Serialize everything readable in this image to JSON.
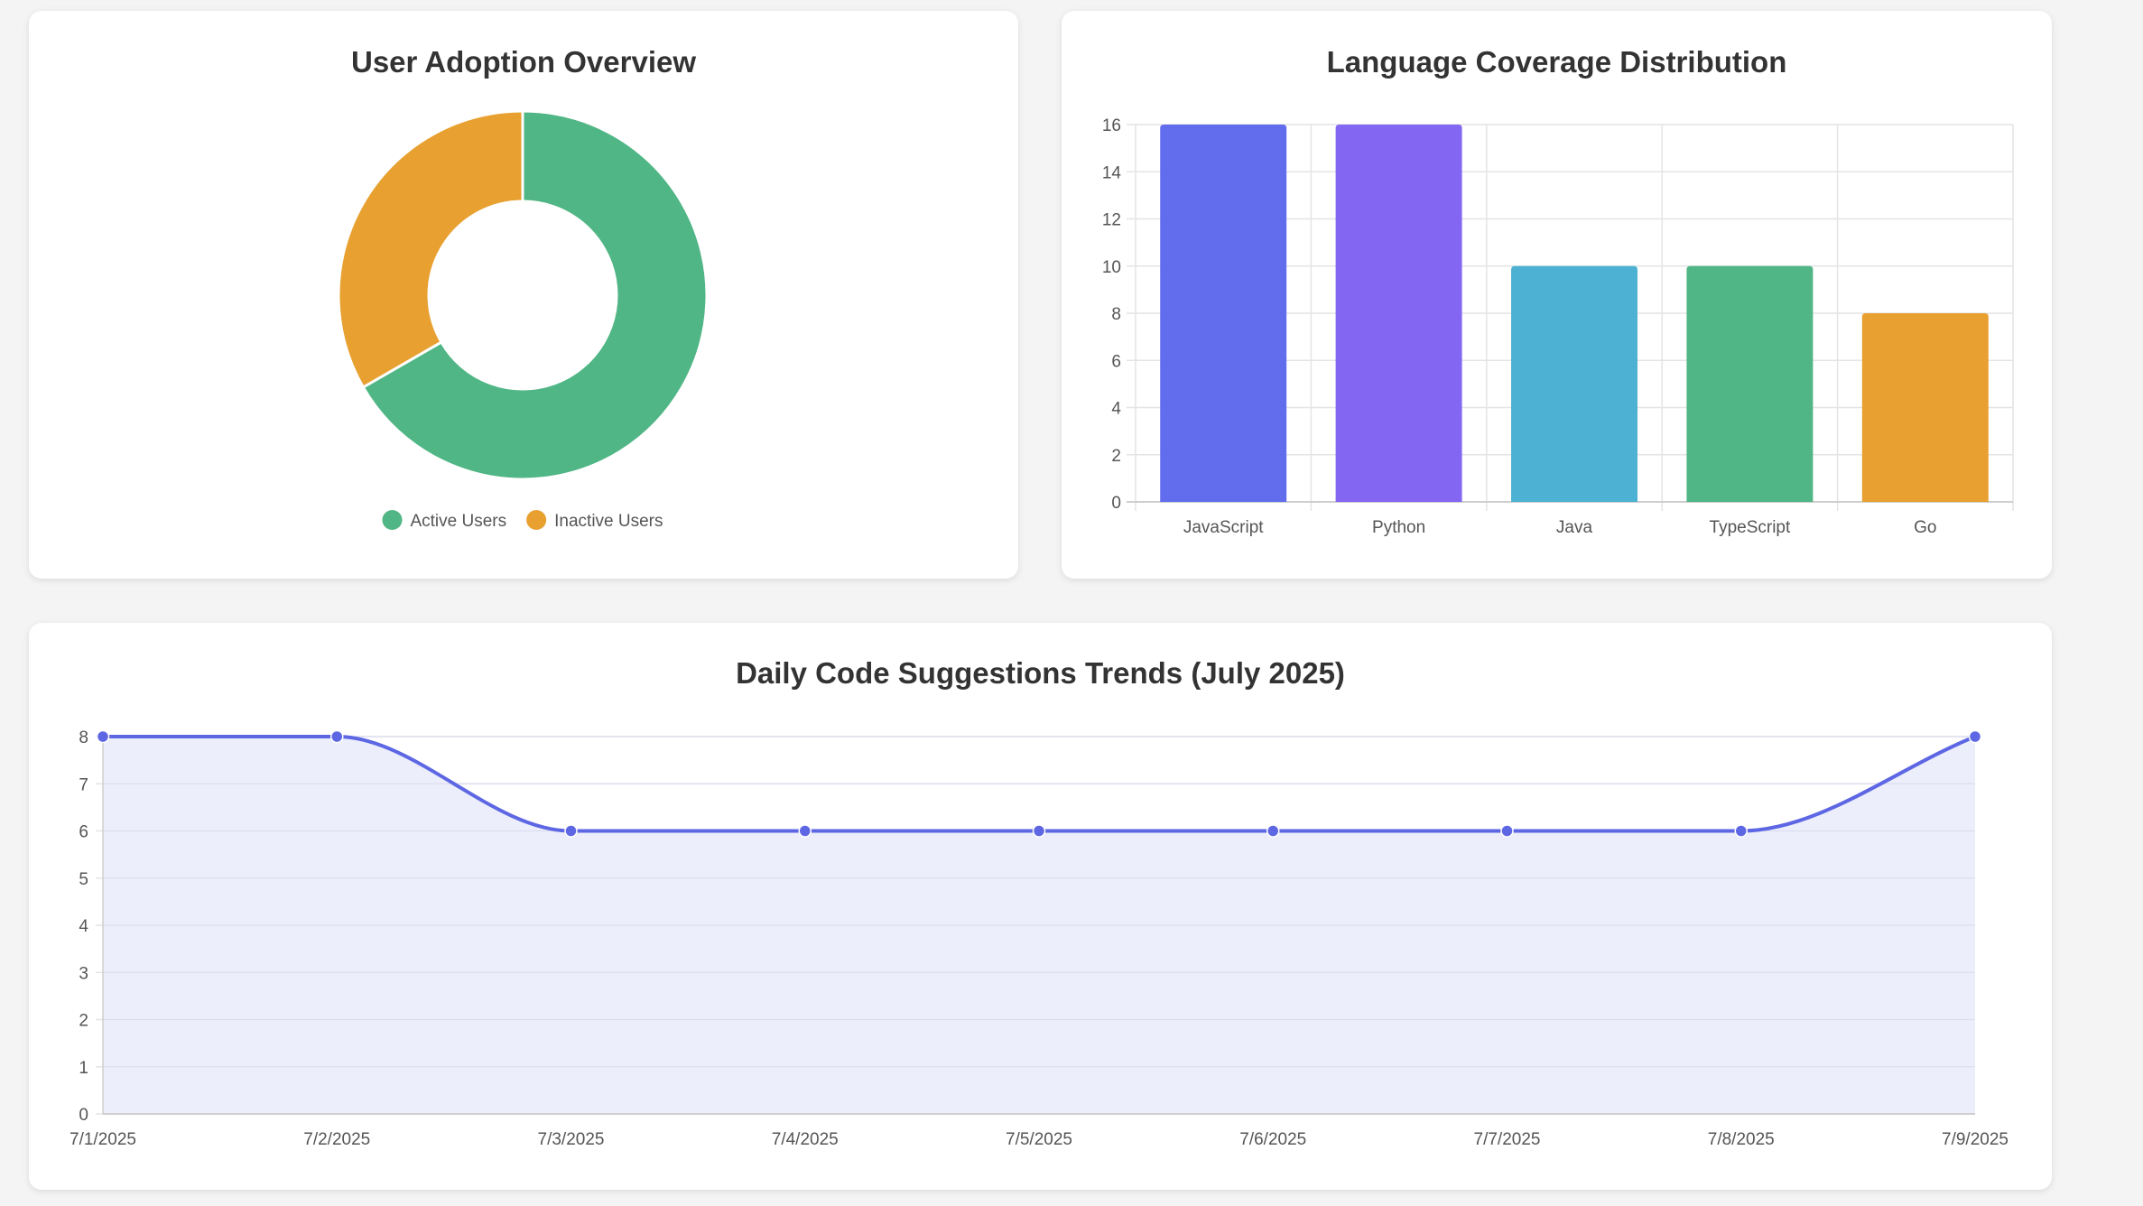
{
  "colors": {
    "green": "#50b685",
    "orange": "#e8a030",
    "indigo": "#626ded",
    "purple": "#8366f2",
    "cyan": "#4cb1d2",
    "line": "#5d67e3",
    "area": "#eceefb",
    "grid": "#e4e4e4"
  },
  "chart_data": [
    {
      "type": "pie",
      "variant": "doughnut",
      "title": "User Adoption Overview",
      "labels": [
        "Active Users",
        "Inactive Users"
      ],
      "values": [
        2,
        1
      ],
      "colors": [
        "#50b685",
        "#e8a030"
      ],
      "legend": "bottom"
    },
    {
      "type": "bar",
      "title": "Language Coverage Distribution",
      "categories": [
        "JavaScript",
        "Python",
        "Java",
        "TypeScript",
        "Go"
      ],
      "values": [
        16,
        16,
        10,
        10,
        8
      ],
      "colors": [
        "#626ded",
        "#8366f2",
        "#4cb1d2",
        "#50b685",
        "#e8a030"
      ],
      "ylim": [
        0,
        16
      ],
      "yticks": [
        0,
        2,
        4,
        6,
        8,
        10,
        12,
        14,
        16
      ],
      "grid": true,
      "legend": "none"
    },
    {
      "type": "area",
      "title": "Daily Code Suggestions Trends (July 2025)",
      "x": [
        "7/1/2025",
        "7/2/2025",
        "7/3/2025",
        "7/4/2025",
        "7/5/2025",
        "7/6/2025",
        "7/7/2025",
        "7/8/2025",
        "7/9/2025"
      ],
      "values": [
        8,
        8,
        6,
        6,
        6,
        6,
        6,
        6,
        8
      ],
      "ylim": [
        0,
        8
      ],
      "yticks": [
        0,
        1,
        2,
        3,
        4,
        5,
        6,
        7,
        8
      ],
      "grid": true,
      "legend": "none"
    }
  ]
}
